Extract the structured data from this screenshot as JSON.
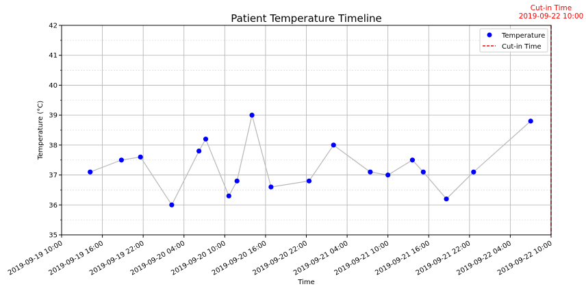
{
  "chart_data": {
    "type": "scatter",
    "title": "Patient Temperature Timeline",
    "xlabel": "Time",
    "ylabel": "Temperature (°C)",
    "xlim": [
      "2019-09-19 10:00",
      "2019-09-22 10:00"
    ],
    "ylim": [
      35,
      42
    ],
    "x_ticks": [
      "2019-09-19 10:00",
      "2019-09-19 16:00",
      "2019-09-19 22:00",
      "2019-09-20 04:00",
      "2019-09-20 10:00",
      "2019-09-20 16:00",
      "2019-09-20 22:00",
      "2019-09-21 04:00",
      "2019-09-21 10:00",
      "2019-09-21 16:00",
      "2019-09-21 22:00",
      "2019-09-22 04:00",
      "2019-09-22 10:00"
    ],
    "y_ticks": [
      35,
      36,
      37,
      38,
      39,
      40,
      41,
      42
    ],
    "grid": true,
    "legend_position": "top-right",
    "series": [
      {
        "name": "Temperature",
        "color": "#0000ff",
        "line_color": "#bbbbbb",
        "points": [
          {
            "x": "2019-09-19 14:12",
            "y": 37.1
          },
          {
            "x": "2019-09-19 18:48",
            "y": 37.5
          },
          {
            "x": "2019-09-19 21:36",
            "y": 37.6
          },
          {
            "x": "2019-09-20 02:12",
            "y": 36.0
          },
          {
            "x": "2019-09-20 06:12",
            "y": 37.8
          },
          {
            "x": "2019-09-20 07:12",
            "y": 38.2
          },
          {
            "x": "2019-09-20 10:36",
            "y": 36.3
          },
          {
            "x": "2019-09-20 11:48",
            "y": 36.8
          },
          {
            "x": "2019-09-20 14:00",
            "y": 39.0
          },
          {
            "x": "2019-09-20 16:48",
            "y": 36.6
          },
          {
            "x": "2019-09-20 22:24",
            "y": 36.8
          },
          {
            "x": "2019-09-21 02:00",
            "y": 38.0
          },
          {
            "x": "2019-09-21 07:24",
            "y": 37.1
          },
          {
            "x": "2019-09-21 10:00",
            "y": 37.0
          },
          {
            "x": "2019-09-21 13:36",
            "y": 37.5
          },
          {
            "x": "2019-09-21 15:12",
            "y": 37.1
          },
          {
            "x": "2019-09-21 18:36",
            "y": 36.2
          },
          {
            "x": "2019-09-21 22:36",
            "y": 37.1
          },
          {
            "x": "2019-09-22 07:00",
            "y": 38.8
          }
        ]
      }
    ],
    "cutin": {
      "name": "Cut-in Time",
      "x": "2019-09-22 10:00",
      "color": "#ff0000",
      "label_line1": "Cut-in Time",
      "label_line2": "2019-09-22 10:00"
    },
    "legend": [
      {
        "label": "Temperature",
        "marker": "dot",
        "color": "#0000ff"
      },
      {
        "label": "Cut-in Time",
        "marker": "dashed-line",
        "color": "#ff0000"
      }
    ]
  }
}
